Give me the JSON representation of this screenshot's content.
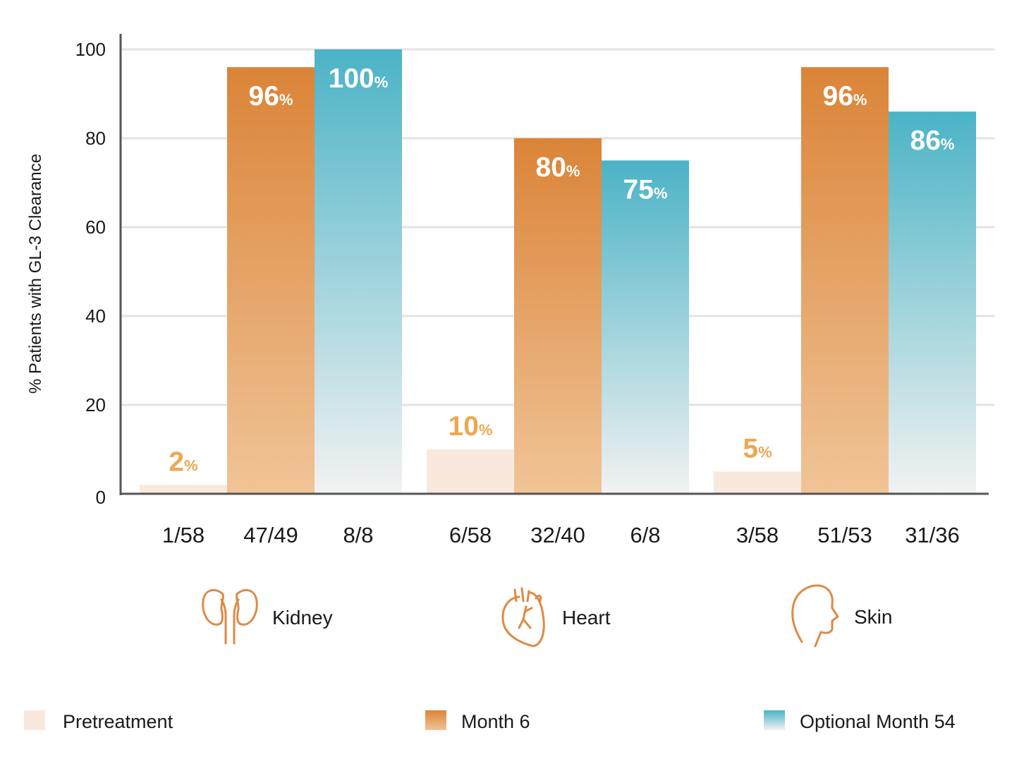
{
  "chart_data": {
    "type": "bar",
    "ylabel": "% Patients with GL-3 Clearance",
    "ylim": [
      0,
      100
    ],
    "yticks": [
      0,
      20,
      40,
      60,
      80,
      100
    ],
    "grid": true,
    "categories": [
      "Kidney",
      "Heart",
      "Skin"
    ],
    "series": [
      {
        "name": "Pretreatment",
        "values": [
          2,
          10,
          5
        ],
        "labels": [
          "2",
          "10",
          "5"
        ],
        "fractions": [
          "1/58",
          "6/58",
          "3/58"
        ]
      },
      {
        "name": "Month 6",
        "values": [
          96,
          80,
          96
        ],
        "labels": [
          "96",
          "80",
          "96"
        ],
        "fractions": [
          "47/49",
          "32/40",
          "51/53"
        ]
      },
      {
        "name": "Optional Month 54",
        "values": [
          100,
          75,
          86
        ],
        "labels": [
          "100",
          "75",
          "86"
        ],
        "fractions": [
          "8/8",
          "6/8",
          "31/36"
        ]
      }
    ],
    "percent_sign": "%",
    "legend_position": "bottom",
    "colors": {
      "pretreatment": "#f8e9dc",
      "month6_top": "#db8438",
      "month6_bottom": "#f0c497",
      "month54_top": "#4bb3c6",
      "month54_bottom": "#f2f2f2",
      "pretreatment_label": "#eda84f",
      "axis": "#555555",
      "grid": "#e3e3e3",
      "icon": "#dd8a45"
    },
    "icons": [
      "kidney-icon",
      "heart-icon",
      "head-icon"
    ]
  }
}
